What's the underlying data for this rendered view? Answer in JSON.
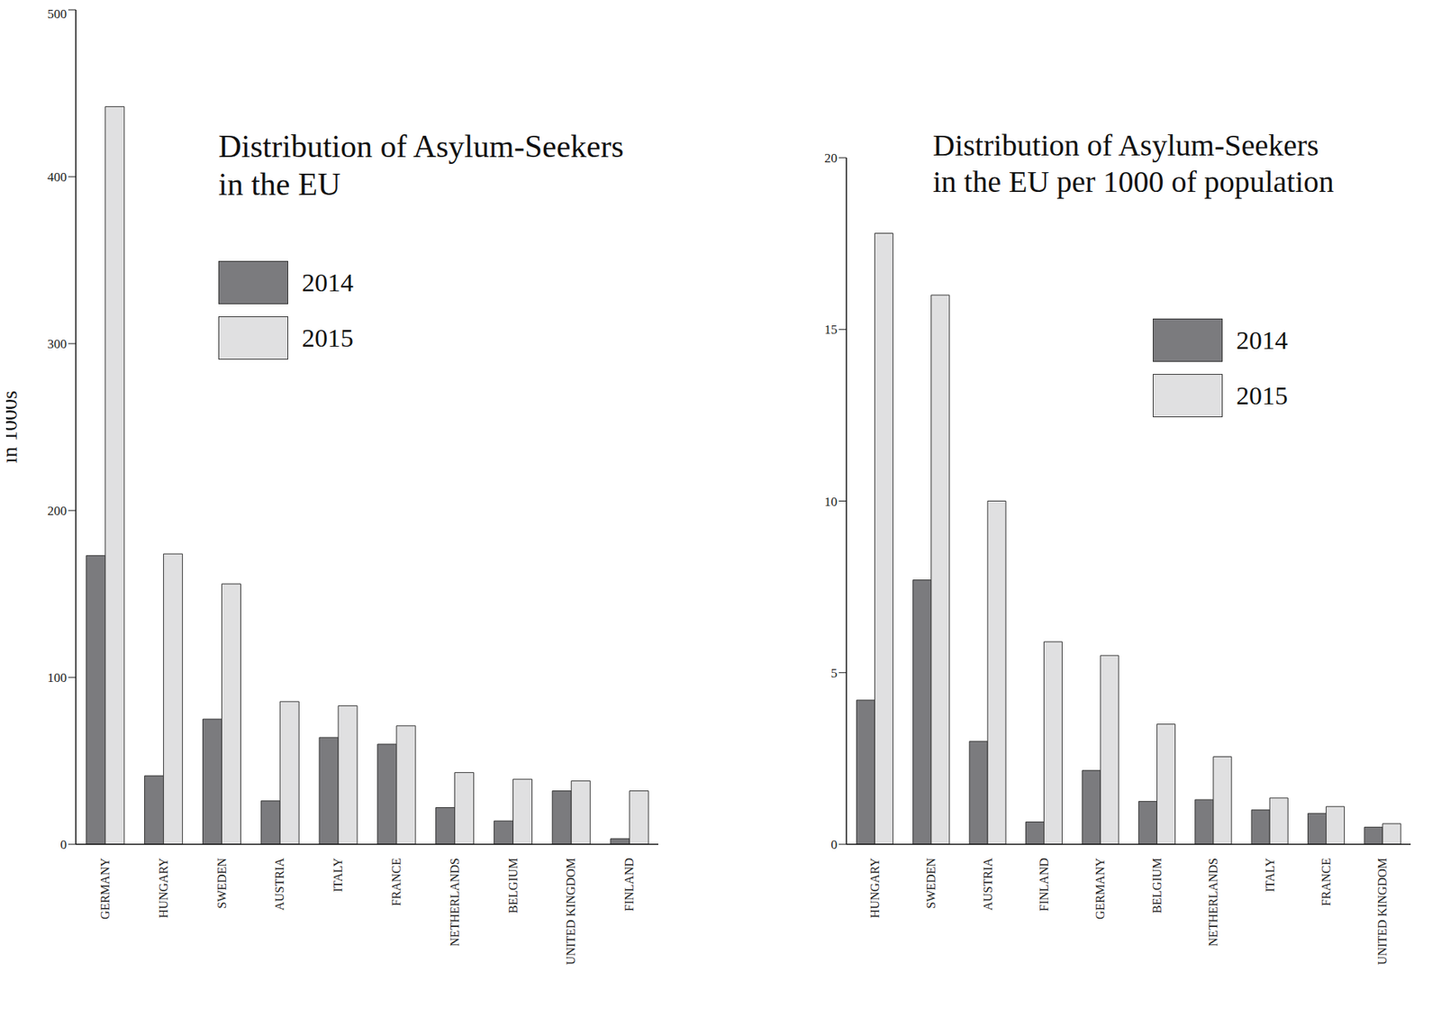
{
  "chart_data": [
    {
      "type": "bar",
      "title": "Distribution of Asylum-Seekers\nin the EU",
      "y_label": "in 1000s",
      "categories": [
        "GERMANY",
        "HUNGARY",
        "SWEDEN",
        "AUSTRIA",
        "ITALY",
        "FRANCE",
        "NETHERLANDS",
        "BELGIUM",
        "UNITED KINGDOM",
        "FINLAND"
      ],
      "series": [
        {
          "name": "2014",
          "color": "#7b7b7e",
          "values": [
            173,
            41,
            75,
            26,
            64,
            60,
            22,
            14,
            32,
            3.3
          ]
        },
        {
          "name": "2015",
          "color": "#e0e0e1",
          "values": [
            442,
            174,
            156,
            85.5,
            83,
            71,
            43,
            39,
            38,
            32
          ]
        }
      ],
      "ylim": [
        0,
        500
      ],
      "yticks": [
        0,
        100,
        200,
        300,
        400,
        500
      ],
      "grid": false
    },
    {
      "type": "bar",
      "title": "Distribution of Asylum-Seekers\nin the EU per 1000 of population",
      "categories": [
        "HUNGARY",
        "SWEDEN",
        "AUSTRIA",
        "FINLAND",
        "GERMANY",
        "BELGIUM",
        "NETHERLANDS",
        "ITALY",
        "FRANCE",
        "UNITED KINGDOM"
      ],
      "series": [
        {
          "name": "2014",
          "color": "#7b7b7e",
          "values": [
            4.2,
            7.7,
            3.0,
            0.65,
            2.15,
            1.25,
            1.3,
            1.0,
            0.9,
            0.5
          ]
        },
        {
          "name": "2015",
          "color": "#e0e0e1",
          "values": [
            17.8,
            16.0,
            10.0,
            5.9,
            5.5,
            3.5,
            2.55,
            1.35,
            1.1,
            0.6
          ]
        }
      ],
      "ylim": [
        0,
        20
      ],
      "yticks": [
        0,
        5,
        10,
        15,
        20
      ],
      "grid": false
    }
  ]
}
